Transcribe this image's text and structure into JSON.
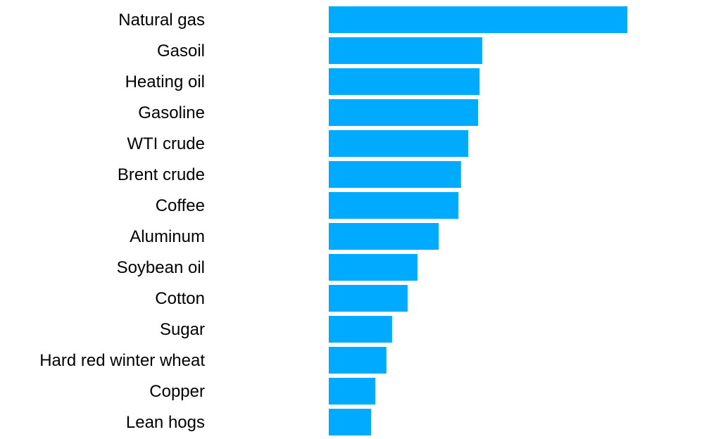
{
  "chart_data": {
    "type": "bar",
    "orientation": "horizontal",
    "categories": [
      "Natural gas",
      "Gasoil",
      "Heating oil",
      "Gasoline",
      "WTI crude",
      "Brent crude",
      "Coffee",
      "Aluminum",
      "Soybean oil",
      "Cotton",
      "Sugar",
      "Hard red winter wheat",
      "Copper",
      "Lean hogs"
    ],
    "values": [
      100,
      51.4,
      50.5,
      50,
      46.7,
      44.3,
      43.4,
      36.8,
      29.7,
      26.4,
      21.2,
      19.3,
      15.6,
      14.2
    ],
    "bar_color": "#00aaff",
    "axes_visible": false,
    "grid": false
  }
}
